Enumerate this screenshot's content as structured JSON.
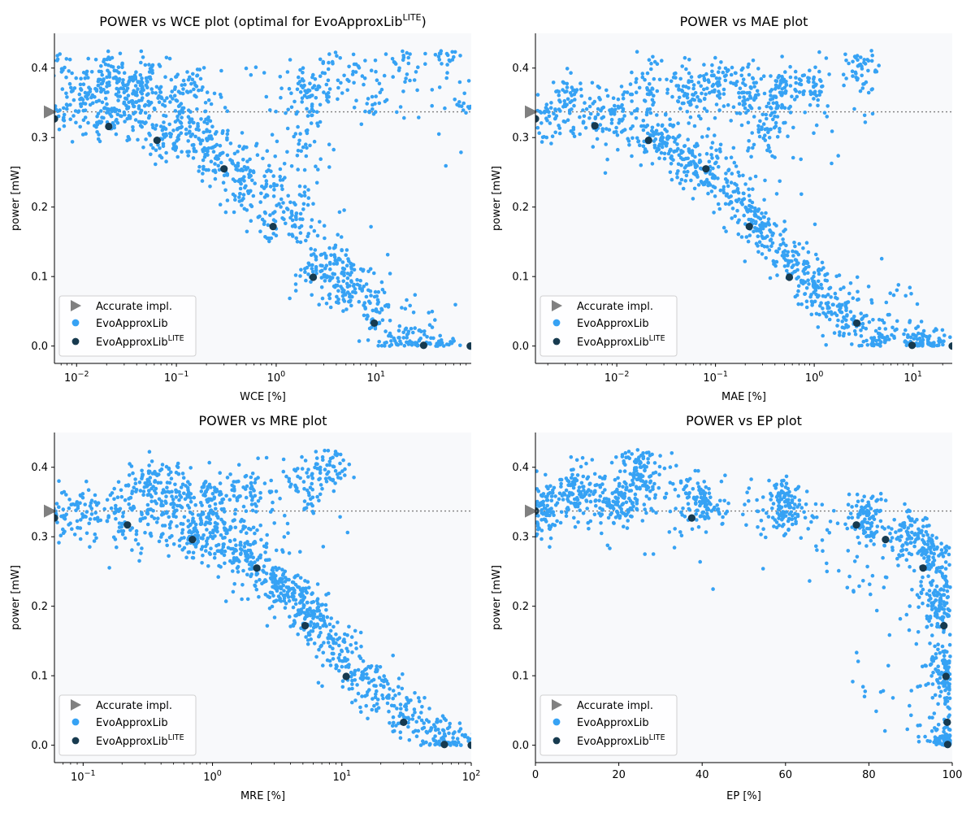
{
  "figure": {
    "legend_labels": {
      "accurate": "Accurate impl.",
      "evo": "EvoApproxLib",
      "lite_base": "EvoApproxLib",
      "lite_sup": "LITE"
    },
    "colors": {
      "scatter": "#36a2f4",
      "lite": "#173a4f",
      "accurate": "#808080",
      "reference_line": "#7f7f7f",
      "plot_bg": "#f8f9fb",
      "axis": "#000000"
    }
  },
  "chart_data": [
    {
      "id": "wce",
      "type": "scatter",
      "title": "POWER vs WCE plot (optimal for EvoApproxLib",
      "title_sup": "LITE",
      "title_tail": ")",
      "xlabel": "WCE [%]",
      "ylabel": "power [mW]",
      "xscale": "log",
      "xlim": [
        0.006,
        90
      ],
      "ylim": [
        -0.025,
        0.45
      ],
      "xticks": [
        {
          "value": 0.01,
          "base": "10",
          "exp": "−2"
        },
        {
          "value": 0.1,
          "base": "10",
          "exp": "−1"
        },
        {
          "value": 1,
          "base": "10",
          "exp": "0"
        },
        {
          "value": 10,
          "base": "10",
          "exp": "1"
        }
      ],
      "yticks": [
        {
          "value": 0.0,
          "label": "0.0"
        },
        {
          "value": 0.1,
          "label": "0.1"
        },
        {
          "value": 0.2,
          "label": "0.2"
        },
        {
          "value": 0.3,
          "label": "0.3"
        },
        {
          "value": 0.4,
          "label": "0.4"
        }
      ],
      "accurate_power": 0.337,
      "series": [
        {
          "name": "EvoApproxLib",
          "kind": "cloud",
          "points": [
            [
              0.006,
              0.34
            ],
            [
              0.006,
              0.4
            ],
            [
              0.011,
              0.36
            ],
            [
              0.016,
              0.35
            ],
            [
              0.016,
              0.38
            ],
            [
              0.022,
              0.33
            ],
            [
              0.022,
              0.4
            ],
            [
              0.03,
              0.34
            ],
            [
              0.03,
              0.37
            ],
            [
              0.04,
              0.35
            ],
            [
              0.04,
              0.39
            ],
            [
              0.05,
              0.38
            ],
            [
              0.064,
              0.3
            ],
            [
              0.064,
              0.35
            ],
            [
              0.1,
              0.3
            ],
            [
              0.1,
              0.37
            ],
            [
              0.15,
              0.32
            ],
            [
              0.15,
              0.38
            ],
            [
              0.19,
              0.27
            ],
            [
              0.19,
              0.3
            ],
            [
              0.3,
              0.26
            ],
            [
              0.3,
              0.28
            ],
            [
              0.5,
              0.22
            ],
            [
              0.5,
              0.25
            ],
            [
              0.9,
              0.18
            ],
            [
              0.9,
              0.23
            ],
            [
              1.5,
              0.17
            ],
            [
              1.8,
              0.2
            ],
            [
              1.8,
              0.3
            ],
            [
              1.8,
              0.37
            ],
            [
              2.3,
              0.1
            ],
            [
              2.5,
              0.12
            ],
            [
              4,
              0.08
            ],
            [
              4,
              0.13
            ],
            [
              6,
              0.07
            ],
            [
              6,
              0.1
            ],
            [
              10,
              0.04
            ],
            [
              10,
              0.06
            ],
            [
              15,
              0.01
            ],
            [
              20,
              0.01
            ],
            [
              30,
              0.005
            ],
            [
              50,
              0.0
            ],
            [
              2,
              0.35
            ],
            [
              3,
              0.38
            ],
            [
              5,
              0.4
            ],
            [
              10,
              0.36
            ],
            [
              20,
              0.4
            ],
            [
              50,
              0.42
            ],
            [
              80,
              0.35
            ]
          ]
        },
        {
          "name": "EvoApproxLib LITE",
          "kind": "pareto",
          "points": [
            [
              0.006,
              0.327
            ],
            [
              0.021,
              0.316
            ],
            [
              0.064,
              0.296
            ],
            [
              0.3,
              0.255
            ],
            [
              0.93,
              0.172
            ],
            [
              2.35,
              0.099
            ],
            [
              9.6,
              0.033
            ],
            [
              30,
              0.001
            ],
            [
              88,
              0.0
            ]
          ]
        }
      ],
      "legend": "lower-left"
    },
    {
      "id": "mae",
      "type": "scatter",
      "title": "POWER vs MAE plot",
      "title_sup": "",
      "title_tail": "",
      "xlabel": "MAE [%]",
      "ylabel": "power [mW]",
      "xscale": "log",
      "xlim": [
        0.0015,
        25
      ],
      "ylim": [
        -0.025,
        0.45
      ],
      "xticks": [
        {
          "value": 0.01,
          "base": "10",
          "exp": "−2"
        },
        {
          "value": 0.1,
          "base": "10",
          "exp": "−1"
        },
        {
          "value": 1,
          "base": "10",
          "exp": "0"
        },
        {
          "value": 10,
          "base": "10",
          "exp": "1"
        }
      ],
      "yticks": [
        {
          "value": 0.0,
          "label": "0.0"
        },
        {
          "value": 0.1,
          "label": "0.1"
        },
        {
          "value": 0.2,
          "label": "0.2"
        },
        {
          "value": 0.3,
          "label": "0.3"
        },
        {
          "value": 0.4,
          "label": "0.4"
        }
      ],
      "accurate_power": 0.337,
      "series": [
        {
          "name": "EvoApproxLib",
          "kind": "cloud",
          "points": [
            [
              0.002,
              0.33
            ],
            [
              0.003,
              0.36
            ],
            [
              0.006,
              0.33
            ],
            [
              0.01,
              0.33
            ],
            [
              0.02,
              0.31
            ],
            [
              0.03,
              0.3
            ],
            [
              0.05,
              0.27
            ],
            [
              0.08,
              0.25
            ],
            [
              0.13,
              0.23
            ],
            [
              0.2,
              0.2
            ],
            [
              0.3,
              0.17
            ],
            [
              0.5,
              0.13
            ],
            [
              0.8,
              0.1
            ],
            [
              1.2,
              0.07
            ],
            [
              2,
              0.045
            ],
            [
              3,
              0.03
            ],
            [
              5,
              0.01
            ],
            [
              10,
              0.0
            ],
            [
              15,
              0.0
            ],
            [
              0.3,
              0.3
            ],
            [
              0.4,
              0.35
            ],
            [
              0.5,
              0.37
            ],
            [
              1,
              0.38
            ],
            [
              3,
              0.4
            ],
            [
              0.02,
              0.38
            ],
            [
              0.05,
              0.37
            ],
            [
              0.1,
              0.38
            ],
            [
              0.2,
              0.37
            ]
          ]
        },
        {
          "name": "EvoApproxLib LITE",
          "kind": "pareto",
          "points": [
            [
              0.0015,
              0.327
            ],
            [
              0.006,
              0.317
            ],
            [
              0.021,
              0.296
            ],
            [
              0.08,
              0.255
            ],
            [
              0.22,
              0.172
            ],
            [
              0.56,
              0.099
            ],
            [
              2.7,
              0.033
            ],
            [
              9.8,
              0.001
            ],
            [
              25,
              0.0
            ]
          ]
        }
      ],
      "legend": "lower-left"
    },
    {
      "id": "mre",
      "type": "scatter",
      "title": "POWER vs MRE plot",
      "title_sup": "",
      "title_tail": "",
      "xlabel": "MRE [%]",
      "ylabel": "power [mW]",
      "xscale": "log",
      "xlim": [
        0.06,
        100
      ],
      "ylim": [
        -0.025,
        0.45
      ],
      "xticks": [
        {
          "value": 0.1,
          "base": "10",
          "exp": "−1"
        },
        {
          "value": 1,
          "base": "10",
          "exp": "0"
        },
        {
          "value": 10,
          "base": "10",
          "exp": "1"
        },
        {
          "value": 100,
          "base": "10",
          "exp": "2"
        }
      ],
      "yticks": [
        {
          "value": 0.0,
          "label": "0.0"
        },
        {
          "value": 0.1,
          "label": "0.1"
        },
        {
          "value": 0.2,
          "label": "0.2"
        },
        {
          "value": 0.3,
          "label": "0.3"
        },
        {
          "value": 0.4,
          "label": "0.4"
        }
      ],
      "accurate_power": 0.337,
      "series": [
        {
          "name": "EvoApproxLib",
          "kind": "cloud",
          "points": [
            [
              0.06,
              0.33
            ],
            [
              0.1,
              0.34
            ],
            [
              0.2,
              0.33
            ],
            [
              0.4,
              0.32
            ],
            [
              0.7,
              0.3
            ],
            [
              1,
              0.32
            ],
            [
              1.5,
              0.28
            ],
            [
              2,
              0.27
            ],
            [
              3,
              0.24
            ],
            [
              4,
              0.22
            ],
            [
              5,
              0.2
            ],
            [
              7,
              0.17
            ],
            [
              10,
              0.14
            ],
            [
              15,
              0.1
            ],
            [
              20,
              0.07
            ],
            [
              30,
              0.04
            ],
            [
              50,
              0.01
            ],
            [
              80,
              0.0
            ],
            [
              1,
              0.36
            ],
            [
              2,
              0.37
            ],
            [
              5,
              0.38
            ],
            [
              8,
              0.4
            ],
            [
              0.3,
              0.38
            ],
            [
              0.5,
              0.37
            ]
          ]
        },
        {
          "name": "EvoApproxLib LITE",
          "kind": "pareto",
          "points": [
            [
              0.06,
              0.327
            ],
            [
              0.22,
              0.317
            ],
            [
              0.7,
              0.296
            ],
            [
              2.2,
              0.255
            ],
            [
              5.2,
              0.172
            ],
            [
              10.8,
              0.099
            ],
            [
              30,
              0.033
            ],
            [
              62,
              0.001
            ],
            [
              100,
              0.0
            ]
          ]
        }
      ],
      "legend": "lower-left"
    },
    {
      "id": "ep",
      "type": "scatter",
      "title": "POWER vs EP plot",
      "title_sup": "",
      "title_tail": "",
      "xlabel": "EP [%]",
      "ylabel": "power [mW]",
      "xscale": "linear",
      "xlim": [
        0,
        100
      ],
      "ylim": [
        -0.025,
        0.45
      ],
      "xticks": [
        {
          "value": 0,
          "label": "0"
        },
        {
          "value": 20,
          "label": "20"
        },
        {
          "value": 40,
          "label": "40"
        },
        {
          "value": 60,
          "label": "60"
        },
        {
          "value": 80,
          "label": "80"
        },
        {
          "value": 100,
          "label": "100"
        }
      ],
      "yticks": [
        {
          "value": 0.0,
          "label": "0.0"
        },
        {
          "value": 0.1,
          "label": "0.1"
        },
        {
          "value": 0.2,
          "label": "0.2"
        },
        {
          "value": 0.3,
          "label": "0.3"
        },
        {
          "value": 0.4,
          "label": "0.4"
        }
      ],
      "accurate_power": 0.337,
      "series": [
        {
          "name": "EvoApproxLib",
          "kind": "cloud",
          "points": [
            [
              2,
              0.34
            ],
            [
              10,
              0.37
            ],
            [
              20,
              0.35
            ],
            [
              25,
              0.4
            ],
            [
              40,
              0.35
            ],
            [
              60,
              0.34
            ],
            [
              80,
              0.33
            ],
            [
              90,
              0.3
            ],
            [
              95,
              0.27
            ],
            [
              97,
              0.2
            ],
            [
              98,
              0.1
            ],
            [
              99,
              0.0
            ]
          ]
        },
        {
          "name": "EvoApproxLib LITE",
          "kind": "pareto",
          "points": [
            [
              0,
              0.337
            ],
            [
              37.5,
              0.327
            ],
            [
              77,
              0.317
            ],
            [
              84,
              0.296
            ],
            [
              93,
              0.255
            ],
            [
              98,
              0.172
            ],
            [
              98.5,
              0.099
            ],
            [
              98.8,
              0.033
            ],
            [
              98.9,
              0.001
            ]
          ]
        }
      ],
      "legend": "lower-left"
    }
  ]
}
